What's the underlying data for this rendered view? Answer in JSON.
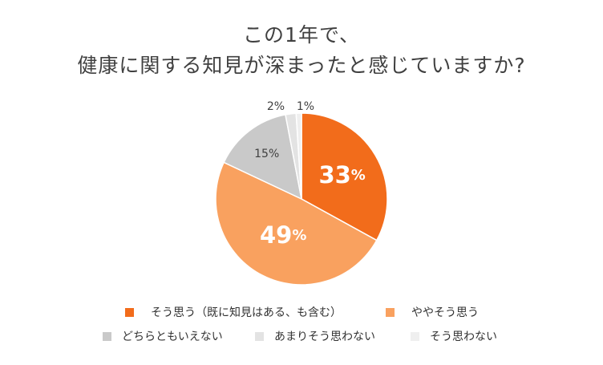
{
  "chart_data": {
    "type": "pie",
    "title_lines": [
      "この1年で、",
      "健康に関する知見が深まったと感じていますか?"
    ],
    "slices": [
      {
        "label": "そう思う（既に知見はある、も含む）",
        "value": 33,
        "display": "33",
        "unit": "%",
        "color": "#f26c1b",
        "label_color": "#ffffff"
      },
      {
        "label": "ややそう思う",
        "value": 49,
        "display": "49",
        "unit": "%",
        "color": "#f9a15f",
        "label_color": "#ffffff"
      },
      {
        "label": "どちらともいえない",
        "value": 15,
        "display": "15",
        "unit": "%",
        "color": "#c9c9c9",
        "label_color": "#404040"
      },
      {
        "label": "あまりそう思わない",
        "value": 2,
        "display": "2",
        "unit": "%",
        "color": "#e3e3e3",
        "label_color": "#404040"
      },
      {
        "label": "そう思わない",
        "value": 1,
        "display": "1",
        "unit": "%",
        "color": "#efefef",
        "label_color": "#404040"
      }
    ],
    "start": "12 o'clock",
    "direction": "clockwise",
    "legend_position": "bottom"
  }
}
